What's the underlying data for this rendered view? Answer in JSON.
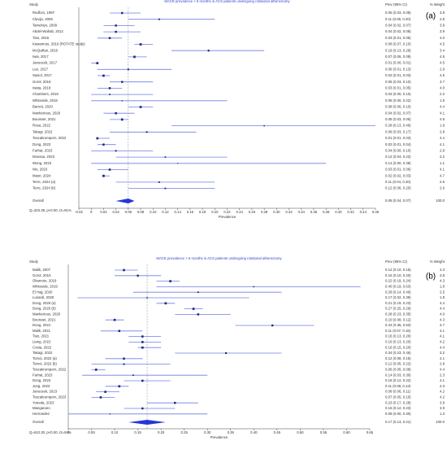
{
  "chart_data": [
    {
      "type": "forest",
      "panel_label": "(a)",
      "title": "MACE prevalence < 6 months in ACS patients undergoing rotational atherectomy",
      "headers": [
        "Study",
        "Prev (95% CI)",
        "% Weight"
      ],
      "categories": [
        "Redfors, 1997",
        "Clavijo, 2006",
        "Tamekiyo, 2009",
        "Abdel-Wahab, 2012",
        "Tian, 2015",
        "Kawamoto, 2016 (ROTATE study)",
        "McQuillan, 2016",
        "Iwai, 2017",
        "Januszek, 2017",
        "Lee, 2017",
        "Sasiol, 2017",
        "Gorol, 2018",
        "Iwata, 2018",
        "Chambers, 2019",
        "Whiteside, 2019",
        "Barrett, 2020",
        "Mankerious, 2020",
        "Bouisset, 2021",
        "Rosa, 2022",
        "Takagi, 2022",
        "Toscakrumporn, 2022",
        "Dong, 2023",
        "Farhat, 2023",
        "Moussa, 2023",
        "Wong, 2023",
        "Wu, 2023",
        "Masri, 2024",
        "Terre, 2024 (a)",
        "Terre, 2024 (b)"
      ],
      "values": [
        0.05,
        0.11,
        0.04,
        0.04,
        0.03,
        0.08,
        0.19,
        0.07,
        0.01,
        0.06,
        0.02,
        0.05,
        0.03,
        0.03,
        0.05,
        0.08,
        0.04,
        0.05,
        0.28,
        0.09,
        0.01,
        0.02,
        0.04,
        0.12,
        0.14,
        0.03,
        0.02,
        0.11,
        0.12
      ],
      "lower": [
        0.03,
        0.06,
        0.02,
        0.02,
        0.01,
        0.07,
        0.13,
        0.06,
        0.0,
        0.01,
        0.01,
        0.03,
        0.01,
        0.0,
        0.0,
        0.06,
        0.02,
        0.03,
        0.13,
        0.03,
        0.01,
        0.01,
        0.0,
        0.04,
        0.0,
        0.01,
        0.02,
        0.04,
        0.06
      ],
      "upper": [
        0.08,
        0.2,
        0.07,
        0.08,
        0.05,
        0.1,
        0.28,
        0.09,
        0.01,
        0.13,
        0.03,
        0.1,
        0.05,
        0.1,
        0.22,
        0.1,
        0.07,
        0.06,
        0.46,
        0.17,
        0.03,
        0.04,
        0.1,
        0.22,
        0.38,
        0.06,
        0.03,
        0.2,
        0.2
      ],
      "value_labels": [
        "0.05 (0.03, 0.08)",
        "0.11 (0.06, 0.20)",
        "0.04 (0.02, 0.07)",
        "0.04 (0.02, 0.08)",
        "0.03 (0.01, 0.05)",
        "0.08 (0.07, 0.10)",
        "0.19 (0.13, 0.28)",
        "0.07 (0.06, 0.09)",
        "0.01 (0.00, 0.01)",
        "0.06 (0.01, 0.13)",
        "0.02 (0.01, 0.03)",
        "0.05 (0.03, 0.10)",
        "0.03 (0.01, 0.05)",
        "0.03 (0.00, 0.10)",
        "0.05 (0.00, 0.22)",
        "0.08 (0.06, 0.10)",
        "0.04 (0.02, 0.07)",
        "0.05 (0.03, 0.06)",
        "0.28 (0.13, 0.46)",
        "0.09 (0.03, 0.17)",
        "0.01 (0.01, 0.03)",
        "0.02 (0.01, 0.04)",
        "0.04 (0.00, 0.10)",
        "0.12 (0.04, 0.22)",
        "0.14 (0.00, 0.38)",
        "0.03 (0.01, 0.06)",
        "0.02 (0.02, 0.03)",
        "0.11 (0.04, 0.20)",
        "0.12 (0.06, 0.20)"
      ],
      "weights": [
        3.9,
        2.8,
        3.9,
        3.9,
        {
          "value": 4,
          "label": "4.0"
        },
        4.5,
        3.4,
        4.5,
        4.5,
        2.9,
        4.5,
        3.7,
        {
          "value": 4,
          "label": "4.0"
        },
        2.2,
        1.5,
        4.4,
        4.1,
        4.5,
        1.9,
        2.8,
        4.4,
        4.1,
        2.8,
        2.2,
        1.1,
        4.1,
        4.7,
        2.6,
        2.6
      ],
      "overall": {
        "name": "Overall",
        "value": 0.06,
        "lower": 0.04,
        "upper": 0.07,
        "label": "0.06 (0.04, 0.07)",
        "weight": {
          "value": 100,
          "label": "100.0"
        }
      },
      "stats": "Q=323.39, p<0.00, I2=91%",
      "xlabel": "Prevalence",
      "xlim": [
        -0.02,
        0.46
      ],
      "xticks": [
        -0.02,
        0,
        0.02,
        0.04,
        0.06,
        0.08,
        {
          "value": 0.1,
          "label": "0.10"
        },
        0.12,
        0.14,
        0.16,
        0.18,
        {
          "value": 0.2,
          "label": "0.20"
        },
        0.22,
        0.24,
        0.26,
        0.28,
        {
          "value": 0.3,
          "label": "0.30"
        },
        0.32,
        0.34,
        0.36,
        0.38,
        {
          "value": 0.4,
          "label": "0.40"
        },
        0.42,
        0.44,
        0.46
      ],
      "marker_color": "#1f2a7a",
      "ci_color": "#6f7fe6",
      "diamond_color": "#2436d8"
    },
    {
      "type": "forest",
      "panel_label": "(b)",
      "title": "MACE prevalence > 6 months in ACS patients undergoing rotational atherectomy",
      "headers": [
        "Study",
        "Prev (95% CI)",
        "% Weight"
      ],
      "categories": [
        "Malik, 2007",
        "Gorol, 2016",
        "Okamoto, 2019",
        "Whiteside, 2019",
        "El Hajj, 2020",
        "Lunardi, 2020",
        "Dong, 2020 (a)",
        "Dong, 2020 (b)",
        "Mankerious, 2020",
        "Bouisset, 2021",
        "Dong, 2021",
        "Malik, 2021",
        "Tian, 2021",
        "Liang, 2022",
        "Costa, 2022",
        "Takagi, 2022",
        "Tomoi, 2022 (a)",
        "Tomoi, 2022 (b)",
        "Toscakrumporn, 2022",
        "Farhat, 2023",
        "Dong, 2023",
        "Jung, 2023",
        "Januszek, 2023",
        "Toscakrumporn, 2023",
        "Yoneda, 2023",
        "Manganaro",
        "Hernandez"
      ],
      "values": [
        0.12,
        0.15,
        0.22,
        0.4,
        0.28,
        0.17,
        0.21,
        0.27,
        0.28,
        0.1,
        0.44,
        0.11,
        0.16,
        0.16,
        0.16,
        0.34,
        0.12,
        0.12,
        0.06,
        0.14,
        0.16,
        0.11,
        0.08,
        0.07,
        0.23,
        0.16,
        0.09
      ],
      "lower": [
        0.1,
        0.1,
        0.19,
        0.19,
        0.14,
        0.02,
        0.19,
        0.25,
        0.23,
        0.08,
        0.36,
        0.07,
        0.13,
        0.13,
        0.15,
        0.23,
        0.08,
        0.05,
        0.05,
        0.03,
        0.12,
        0.08,
        0.06,
        0.05,
        0.17,
        0.12,
        0.0
      ],
      "upper": [
        0.15,
        0.2,
        0.24,
        0.63,
        0.46,
        0.39,
        0.23,
        0.29,
        0.35,
        0.12,
        0.53,
        0.16,
        0.2,
        0.2,
        0.2,
        0.46,
        0.16,
        0.22,
        0.08,
        0.3,
        0.22,
        0.13,
        0.11,
        0.1,
        0.28,
        0.23,
        0.3
      ],
      "value_labels": [
        "0.12 (0.10, 0.15)",
        "0.15 (0.10, 0.20)",
        "0.22 (0.19, 0.24)",
        "0.40 (0.19, 0.63)",
        "0.28 (0.14, 0.46)",
        "0.17 (0.02, 0.39)",
        "0.21 (0.19, 0.23)",
        "0.27 (0.25, 0.29)",
        "0.28 (0.23, 0.35)",
        "0.10 (0.08, 0.12)",
        "0.44 (0.36, 0.53)",
        "0.11 (0.07, 0.16)",
        "0.16 (0.13, 0.20)",
        "0.16 (0.13, 0.20)",
        "0.16 (0.15, 0.20)",
        "0.34 (0.23, 0.46)",
        "0.12 (0.08, 0.16)",
        "0.12 (0.05, 0.22)",
        "0.06 (0.05, 0.08)",
        "0.14 (0.03, 0.30)",
        "0.16 (0.12, 0.22)",
        "0.11 (0.08, 0.13)",
        "0.08 (0.06, 0.11)",
        "0.07 (0.05, 0.10)",
        "0.23 (0.17, 0.28)",
        "0.16 (0.12, 0.23)",
        "0.09 (0.00, 0.30)"
      ],
      "weights": [
        4.3,
        3.8,
        4.3,
        1.8,
        2.5,
        1.8,
        4.4,
        4.4,
        {
          "value": 4,
          "label": "4.0"
        },
        4.3,
        3.7,
        4.1,
        4.1,
        4.2,
        4.4,
        3.2,
        4.1,
        2.8,
        4.4,
        2.3,
        4.1,
        4.3,
        4.2,
        4.2,
        3.9,
        3.9,
        1.3
      ],
      "overall": {
        "name": "Overall",
        "value": 0.17,
        "lower": 0.13,
        "upper": 0.21,
        "label": "0.17 (0.13, 0.21)",
        "weight": {
          "value": 100,
          "label": "100.0"
        }
      },
      "stats": "Q=610.30, p<0.00, I2=94%",
      "xlabel": "Prevalence",
      "xlim": [
        0,
        0.65
      ],
      "xticks": [
        0,
        0.05,
        {
          "value": 0.1,
          "label": "0.10"
        },
        0.15,
        {
          "value": 0.2,
          "label": "0.20"
        },
        0.25,
        {
          "value": 0.3,
          "label": "0.30"
        },
        0.35,
        {
          "value": 0.4,
          "label": "0.40"
        },
        0.45,
        {
          "value": 0.5,
          "label": "0.50"
        },
        0.55,
        {
          "value": 0.6,
          "label": "0.60"
        },
        0.65
      ],
      "marker_color": "#1f2a7a",
      "ci_color": "#6f7fe6",
      "diamond_color": "#2436d8"
    }
  ]
}
